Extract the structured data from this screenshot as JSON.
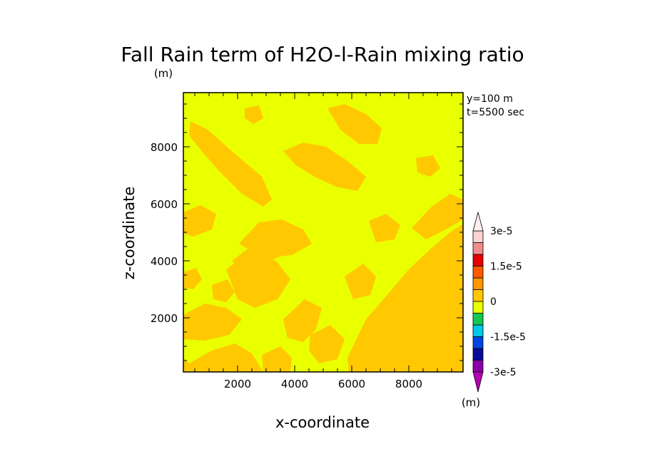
{
  "chart_data": {
    "type": "heatmap",
    "title": "Fall Rain term of H2O-l-Rain mixing ratio",
    "title_unit": "(m)",
    "xlabel": "x-coordinate",
    "ylabel": "z-coordinate",
    "annotations": [
      "y=100 m",
      "t=5500 sec"
    ],
    "xlim": [
      100,
      9900
    ],
    "ylim": [
      100,
      9900
    ],
    "xticks": [
      2000,
      4000,
      6000,
      8000
    ],
    "yticks": [
      2000,
      4000,
      6000,
      8000
    ],
    "colorbar": {
      "unit": "(m)",
      "levels": [
        -3e-05,
        -2.5e-05,
        -2e-05,
        -1.5e-05,
        -1e-05,
        -5e-06,
        0,
        5e-06,
        1e-05,
        1.5e-05,
        2e-05,
        2.5e-05,
        3e-05
      ],
      "colors": [
        "#8a00a8",
        "#0a0a9a",
        "#0046e6",
        "#00c8e6",
        "#14c850",
        "#eaff00",
        "#ffc800",
        "#ff9600",
        "#ff5a00",
        "#e60000",
        "#f08c8c",
        "#fcd2d2"
      ],
      "labels": [
        {
          "value": 3e-05,
          "text": "3e-5"
        },
        {
          "value": 1.5e-05,
          "text": "1.5e-5"
        },
        {
          "value": 0,
          "text": "0"
        },
        {
          "value": -1.5e-05,
          "text": "-1.5e-5"
        },
        {
          "value": -3e-05,
          "text": "-3e-5"
        }
      ]
    },
    "background_color": "#eaff00",
    "field_colors": {
      "positive": "#ffc800"
    }
  }
}
